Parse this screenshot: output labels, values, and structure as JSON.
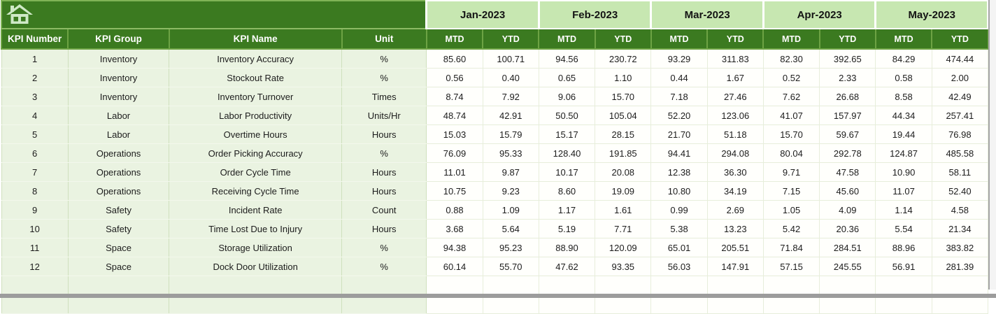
{
  "colors": {
    "header_dark_green": "#3b7a20",
    "month_band_green": "#c7e7b1",
    "row_light_green": "#eaf3e1",
    "grid_green": "#dcead0",
    "home_icon_pale": "#cfe9c7",
    "window_edge_grey": "#9c9c9c"
  },
  "icons": {
    "home": "home-icon"
  },
  "table": {
    "left_headers": [
      "KPI Number",
      "KPI Group",
      "KPI Name",
      "Unit"
    ],
    "months": [
      "Jan-2023",
      "Feb-2023",
      "Mar-2023",
      "Apr-2023",
      "May-2023"
    ],
    "sub_headers": [
      "MTD",
      "YTD"
    ],
    "rows": [
      {
        "number": "1",
        "group": "Inventory",
        "name": "Inventory Accuracy",
        "unit": "%",
        "values": [
          "85.60",
          "100.71",
          "94.56",
          "230.72",
          "93.29",
          "311.83",
          "82.30",
          "392.65",
          "84.29",
          "474.44"
        ]
      },
      {
        "number": "2",
        "group": "Inventory",
        "name": "Stockout Rate",
        "unit": "%",
        "values": [
          "0.56",
          "0.40",
          "0.65",
          "1.10",
          "0.44",
          "1.67",
          "0.52",
          "2.33",
          "0.58",
          "2.00"
        ]
      },
      {
        "number": "3",
        "group": "Inventory",
        "name": "Inventory Turnover",
        "unit": "Times",
        "values": [
          "8.74",
          "7.92",
          "9.06",
          "15.70",
          "7.18",
          "27.46",
          "7.62",
          "26.68",
          "8.58",
          "42.49"
        ]
      },
      {
        "number": "4",
        "group": "Labor",
        "name": "Labor Productivity",
        "unit": "Units/Hr",
        "values": [
          "48.74",
          "42.91",
          "50.50",
          "105.04",
          "52.20",
          "123.06",
          "41.07",
          "157.97",
          "44.34",
          "257.41"
        ]
      },
      {
        "number": "5",
        "group": "Labor",
        "name": "Overtime Hours",
        "unit": "Hours",
        "values": [
          "15.03",
          "15.79",
          "15.17",
          "28.15",
          "21.70",
          "51.18",
          "15.70",
          "59.67",
          "19.44",
          "76.98"
        ]
      },
      {
        "number": "6",
        "group": "Operations",
        "name": "Order Picking Accuracy",
        "unit": "%",
        "values": [
          "76.09",
          "95.33",
          "128.40",
          "191.85",
          "94.41",
          "294.08",
          "80.04",
          "292.78",
          "124.87",
          "485.58"
        ]
      },
      {
        "number": "7",
        "group": "Operations",
        "name": "Order Cycle Time",
        "unit": "Hours",
        "values": [
          "11.01",
          "9.87",
          "10.17",
          "20.08",
          "12.38",
          "36.30",
          "9.71",
          "47.58",
          "10.90",
          "58.11"
        ]
      },
      {
        "number": "8",
        "group": "Operations",
        "name": "Receiving Cycle Time",
        "unit": "Hours",
        "values": [
          "10.75",
          "9.23",
          "8.60",
          "19.09",
          "10.80",
          "34.19",
          "7.15",
          "45.60",
          "11.07",
          "52.40"
        ]
      },
      {
        "number": "9",
        "group": "Safety",
        "name": "Incident Rate",
        "unit": "Count",
        "values": [
          "0.88",
          "1.09",
          "1.17",
          "1.61",
          "0.99",
          "2.69",
          "1.05",
          "4.09",
          "1.14",
          "4.58"
        ]
      },
      {
        "number": "10",
        "group": "Safety",
        "name": "Time Lost Due to Injury",
        "unit": "Hours",
        "values": [
          "3.68",
          "5.64",
          "5.19",
          "7.71",
          "5.38",
          "13.23",
          "5.42",
          "20.36",
          "5.54",
          "21.34"
        ]
      },
      {
        "number": "11",
        "group": "Space",
        "name": "Storage Utilization",
        "unit": "%",
        "values": [
          "94.38",
          "95.23",
          "88.90",
          "120.09",
          "65.01",
          "205.51",
          "71.84",
          "284.51",
          "88.96",
          "383.82"
        ]
      },
      {
        "number": "12",
        "group": "Space",
        "name": "Dock Door Utilization",
        "unit": "%",
        "values": [
          "60.14",
          "55.70",
          "47.62",
          "93.35",
          "56.03",
          "147.91",
          "57.15",
          "245.55",
          "56.91",
          "281.39"
        ]
      }
    ],
    "empty_row_count": 2
  }
}
